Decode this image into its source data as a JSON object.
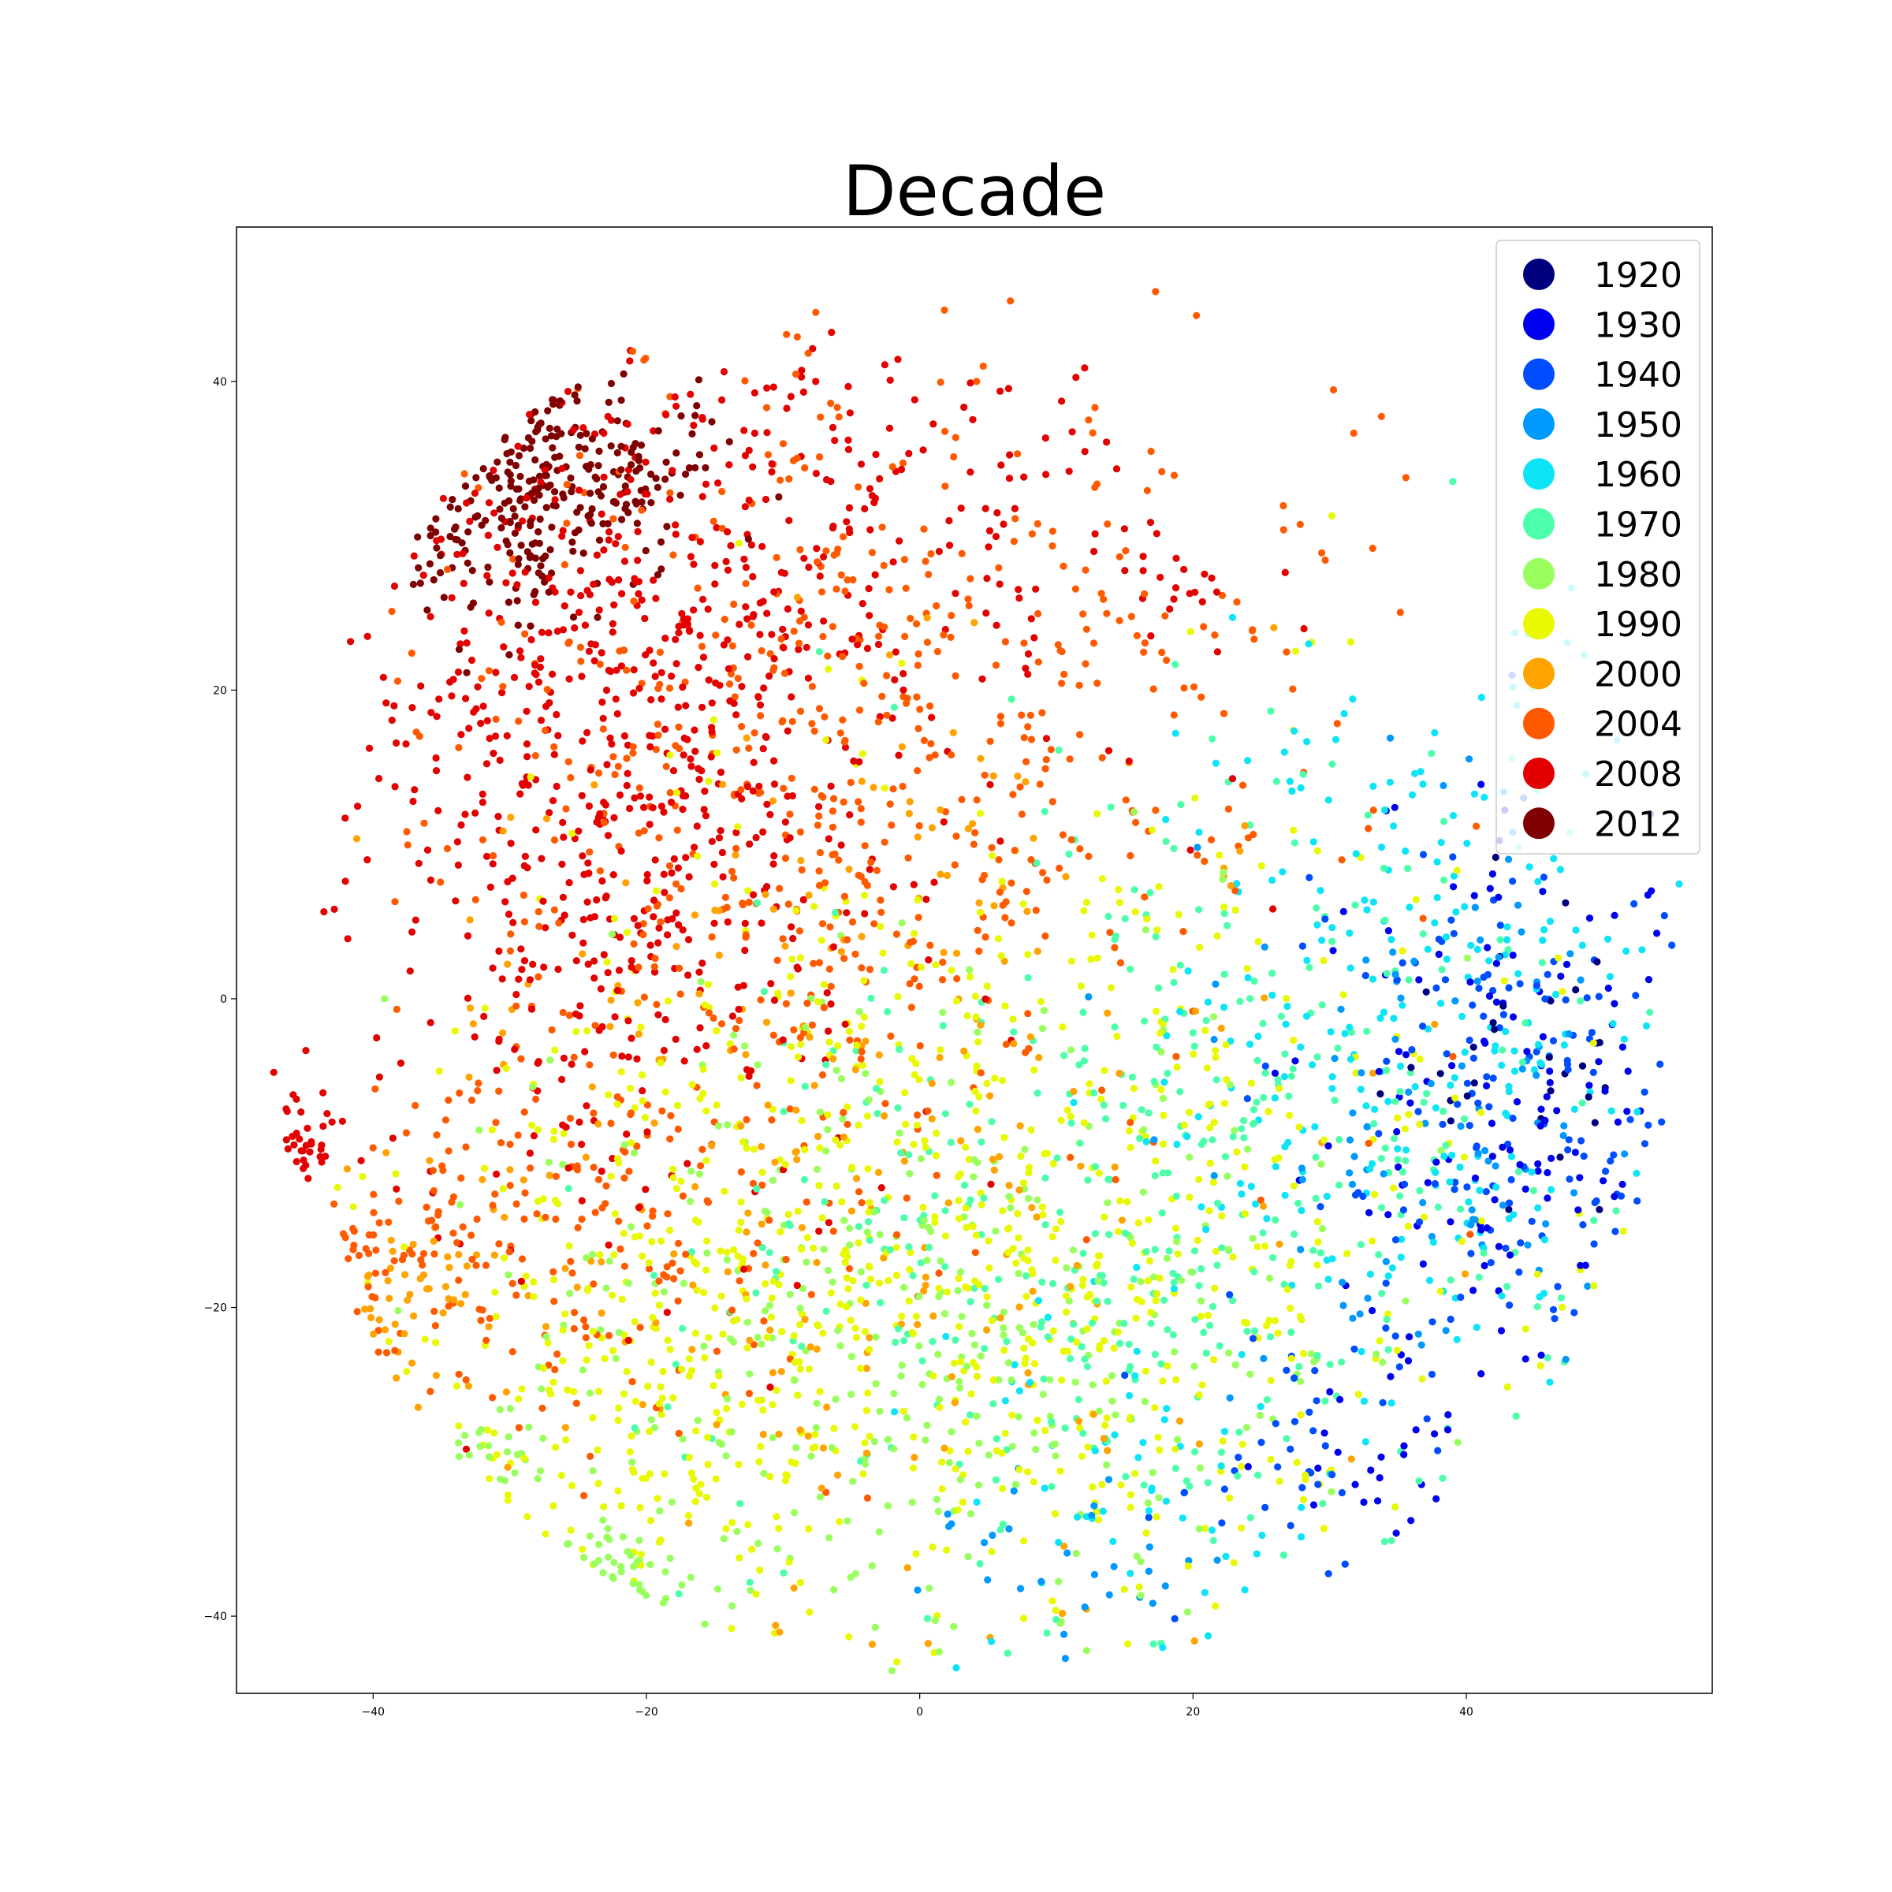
{
  "chart_data": {
    "type": "scatter",
    "title": "Decade",
    "xlabel": "",
    "ylabel": "",
    "xlim": [
      -50,
      58
    ],
    "ylim": [
      -45,
      50
    ],
    "x_ticks": [
      -40,
      -20,
      0,
      20,
      40
    ],
    "y_ticks": [
      -40,
      -20,
      0,
      20,
      40
    ],
    "x_tick_labels": [
      "−40",
      "−20",
      "0",
      "20",
      "40"
    ],
    "y_tick_labels": [
      "−40",
      "−20",
      "0",
      "20",
      "40"
    ],
    "grid": false,
    "legend_position": "top-right",
    "series": [
      {
        "name": "1920",
        "color": "#00007f",
        "clusters": [
          {
            "cx": 44,
            "cy": -3,
            "sx": 5,
            "sy": 6,
            "n": 30
          }
        ]
      },
      {
        "name": "1930",
        "color": "#0000f1",
        "clusters": [
          {
            "cx": 43,
            "cy": -5,
            "sx": 7,
            "sy": 8,
            "n": 120
          },
          {
            "cx": 32,
            "cy": -30,
            "sx": 4,
            "sy": 3,
            "n": 25
          }
        ]
      },
      {
        "name": "1940",
        "color": "#004cff",
        "clusters": [
          {
            "cx": 42,
            "cy": -8,
            "sx": 8,
            "sy": 9,
            "n": 140
          },
          {
            "cx": 30,
            "cy": -30,
            "sx": 5,
            "sy": 4,
            "n": 35
          }
        ]
      },
      {
        "name": "1950",
        "color": "#0099ff",
        "clusters": [
          {
            "cx": 38,
            "cy": -10,
            "sx": 9,
            "sy": 10,
            "n": 90
          },
          {
            "cx": 10,
            "cy": -38,
            "sx": 8,
            "sy": 4,
            "n": 30
          }
        ]
      },
      {
        "name": "1960",
        "color": "#0de5f6",
        "clusters": [
          {
            "cx": 36,
            "cy": -2,
            "sx": 9,
            "sy": 12,
            "n": 240
          },
          {
            "cx": 15,
            "cy": -30,
            "sx": 8,
            "sy": 7,
            "n": 60
          }
        ]
      },
      {
        "name": "1970",
        "color": "#4dffaa",
        "clusters": [
          {
            "cx": 22,
            "cy": -12,
            "sx": 14,
            "sy": 14,
            "n": 330
          },
          {
            "cx": 0,
            "cy": -20,
            "sx": 12,
            "sy": 10,
            "n": 100
          }
        ]
      },
      {
        "name": "1980",
        "color": "#99ff5c",
        "clusters": [
          {
            "cx": 0,
            "cy": -22,
            "sx": 16,
            "sy": 12,
            "n": 340
          },
          {
            "cx": -23,
            "cy": -40,
            "sx": 2.5,
            "sy": 2.5,
            "n": 40
          },
          {
            "cx": -33,
            "cy": -30,
            "sx": 3,
            "sy": 2,
            "n": 20
          }
        ]
      },
      {
        "name": "1990",
        "color": "#e8f900",
        "clusters": [
          {
            "cx": 5,
            "cy": -15,
            "sx": 18,
            "sy": 14,
            "n": 700
          },
          {
            "cx": -20,
            "cy": -25,
            "sx": 10,
            "sy": 8,
            "n": 180
          }
        ]
      },
      {
        "name": "2000",
        "color": "#ffa300",
        "clusters": [
          {
            "cx": -5,
            "cy": -10,
            "sx": 16,
            "sy": 14,
            "n": 260
          },
          {
            "cx": -38,
            "cy": -20,
            "sx": 3,
            "sy": 3,
            "n": 40
          }
        ]
      },
      {
        "name": "2004",
        "color": "#ff5a00",
        "clusters": [
          {
            "cx": -5,
            "cy": 15,
            "sx": 16,
            "sy": 14,
            "n": 620
          },
          {
            "cx": -25,
            "cy": -15,
            "sx": 10,
            "sy": 7,
            "n": 180
          },
          {
            "cx": -38,
            "cy": -16,
            "sx": 3,
            "sy": 3,
            "n": 40
          }
        ]
      },
      {
        "name": "2008",
        "color": "#e30000",
        "clusters": [
          {
            "cx": -22,
            "cy": 15,
            "sx": 10,
            "sy": 13,
            "n": 620
          },
          {
            "cx": -10,
            "cy": 30,
            "sx": 14,
            "sy": 8,
            "n": 200
          },
          {
            "cx": -46,
            "cy": -10,
            "sx": 2,
            "sy": 2,
            "n": 35
          },
          {
            "cx": 20,
            "cy": 27,
            "sx": 3,
            "sy": 2,
            "n": 20
          }
        ]
      },
      {
        "name": "2012",
        "color": "#7f0000",
        "clusters": [
          {
            "cx": -30,
            "cy": 32,
            "sx": 5,
            "sy": 4,
            "n": 200
          },
          {
            "cx": -22,
            "cy": 35,
            "sx": 4,
            "sy": 3,
            "n": 80
          }
        ]
      }
    ]
  }
}
